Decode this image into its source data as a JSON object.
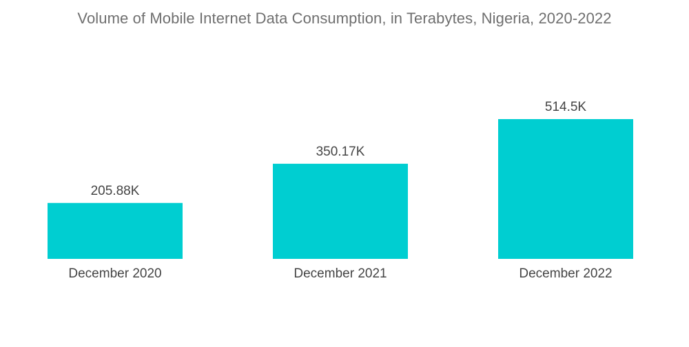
{
  "chart_data": {
    "type": "bar",
    "title": "Volume of Mobile Internet Data Consumption, in Terabytes, Nigeria, 2020-2022",
    "categories": [
      "December 2020",
      "December 2021",
      "December 2022"
    ],
    "values": [
      205.88,
      350.17,
      514.5
    ],
    "value_labels": [
      "205.88K",
      "350.17K",
      "514.5K"
    ],
    "xlabel": "",
    "ylabel": "",
    "ylim": [
      0,
      514.5
    ],
    "grid": false,
    "legend": "none",
    "colors": {
      "bar": "#00CED1",
      "title": "#6F6F6F",
      "text": "#444444"
    }
  }
}
